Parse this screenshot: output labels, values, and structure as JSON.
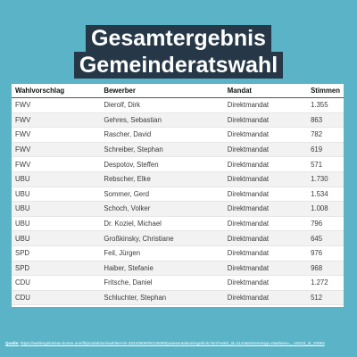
{
  "title": [
    "Gesamtergebnis",
    "Gemeinderatswahl"
  ],
  "table": {
    "headers": [
      "Wahlvorschlag",
      "Bewerber",
      "Mandat",
      "Stimmen"
    ],
    "rows": [
      [
        "FWV",
        "Dierolf, Dirk",
        "Direktmandat",
        "1.355"
      ],
      [
        "FWV",
        "Gehres, Sebastian",
        "Direktmandat",
        "863"
      ],
      [
        "FWV",
        "Rascher, David",
        "Direktmandat",
        "782"
      ],
      [
        "FWV",
        "Schreiber, Stephan",
        "Direktmandat",
        "619"
      ],
      [
        "FWV",
        "Despotov, Steffen",
        "Direktmandat",
        "571"
      ],
      [
        "UBU",
        "Rebscher, Elke",
        "Direktmandat",
        "1.730"
      ],
      [
        "UBU",
        "Sommer, Gerd",
        "Direktmandat",
        "1.534"
      ],
      [
        "UBU",
        "Schoch, Volker",
        "Direktmandat",
        "1.008"
      ],
      [
        "UBU",
        "Dr. Koziel, Michael",
        "Direktmandat",
        "796"
      ],
      [
        "UBU",
        "Großkinsky, Christiane",
        "Direktmandat",
        "645"
      ],
      [
        "SPD",
        "Feil, Jürgen",
        "Direktmandat",
        "976"
      ],
      [
        "SPD",
        "Haiber, Stefanie",
        "Direktmandat",
        "968"
      ],
      [
        "CDU",
        "Fritsche, Daniel",
        "Direktmandat",
        "1.272"
      ],
      [
        "CDU",
        "Schluchter, Stephan",
        "Direktmandat",
        "512"
      ]
    ]
  },
  "source": {
    "label": "Quelle:",
    "url": "https://wahlergebnisse.komm.one/lb/produktion/wahltermin-20240609/08125090/praesentation/ergebnis.html?wahl_id=2124&stimmentyp=0&ebene=_-19319_id_20083"
  },
  "colors": {
    "background": "#5ab3c6",
    "title_bg": "#263847"
  }
}
